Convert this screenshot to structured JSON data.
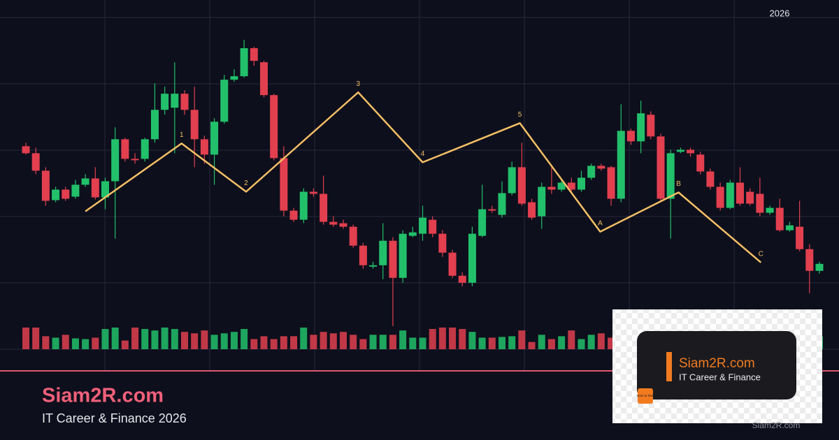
{
  "header": {
    "year": "2026"
  },
  "brand": {
    "name": "Siam2R.com",
    "tagline": "IT Career & Finance 2026",
    "footer": "Siam2R.com"
  },
  "logo": {
    "name": "Siam2R.com",
    "tagline": "IT Career & Finance",
    "badge": "Siam to Rich"
  },
  "chart_data": {
    "type": "candlestick",
    "up_color": "#22c06a",
    "down_color": "#e23f4f",
    "open": [
      290,
      280,
      255,
      213,
      228,
      218,
      235,
      244,
      217,
      240,
      300,
      272,
      272,
      300,
      342,
      345,
      365,
      342,
      300,
      278,
      325,
      385,
      390,
      430,
      410,
      363,
      273,
      198,
      185,
      225,
      222,
      182,
      180,
      175,
      148,
      118,
      120,
      155,
      102,
      162,
      165,
      185,
      165,
      138,
      105,
      95,
      162,
      200,
      192,
      223,
      260,
      210,
      190,
      232,
      228,
      238,
      228,
      245,
      262,
      260,
      215,
      312,
      297,
      335,
      304,
      215,
      282,
      285,
      278,
      254,
      232,
      202,
      238,
      225,
      222,
      195,
      202,
      170,
      175,
      143,
      112
    ],
    "high": [
      295,
      288,
      260,
      232,
      232,
      242,
      250,
      260,
      245,
      317,
      302,
      280,
      302,
      380,
      375,
      410,
      370,
      375,
      305,
      330,
      392,
      400,
      442,
      432,
      412,
      365,
      290,
      202,
      230,
      230,
      248,
      190,
      185,
      178,
      152,
      125,
      180,
      160,
      170,
      175,
      205,
      190,
      170,
      142,
      110,
      175,
      235,
      205,
      240,
      268,
      295,
      215,
      238,
      260,
      242,
      245,
      255,
      265,
      265,
      262,
      350,
      315,
      355,
      340,
      308,
      285,
      288,
      288,
      282,
      258,
      238,
      242,
      260,
      230,
      245,
      205,
      215,
      182,
      212,
      150,
      125
    ],
    "low": [
      278,
      250,
      205,
      210,
      212,
      215,
      232,
      214,
      200,
      158,
      268,
      265,
      268,
      295,
      335,
      280,
      335,
      260,
      265,
      235,
      322,
      382,
      388,
      405,
      360,
      270,
      190,
      182,
      180,
      218,
      178,
      175,
      172,
      145,
      115,
      115,
      100,
      33,
      95,
      160,
      155,
      160,
      132,
      102,
      90,
      90,
      160,
      195,
      188,
      220,
      205,
      185,
      172,
      222,
      225,
      222,
      225,
      242,
      255,
      205,
      210,
      292,
      280,
      300,
      210,
      158,
      280,
      275,
      250,
      228,
      198,
      200,
      205,
      205,
      190,
      192,
      168,
      168,
      140,
      80,
      108
    ],
    "close": [
      280,
      255,
      212,
      228,
      215,
      235,
      244,
      217,
      240,
      300,
      272,
      270,
      300,
      342,
      365,
      365,
      342,
      300,
      278,
      325,
      385,
      390,
      430,
      412,
      363,
      273,
      198,
      185,
      225,
      222,
      182,
      178,
      175,
      148,
      120,
      120,
      155,
      102,
      165,
      167,
      188,
      165,
      138,
      105,
      95,
      165,
      200,
      198,
      223,
      260,
      208,
      188,
      232,
      228,
      238,
      228,
      245,
      262,
      258,
      215,
      312,
      297,
      337,
      304,
      215,
      280,
      285,
      280,
      254,
      232,
      202,
      238,
      208,
      208,
      195,
      202,
      170,
      177,
      143,
      112,
      122
    ],
    "volume": [
      30,
      30,
      18,
      16,
      20,
      15,
      14,
      16,
      28,
      30,
      12,
      30,
      28,
      26,
      30,
      28,
      24,
      22,
      26,
      20,
      22,
      24,
      28,
      14,
      18,
      14,
      18,
      18,
      30,
      20,
      24,
      22,
      24,
      20,
      14,
      20,
      20,
      20,
      26,
      16,
      16,
      28,
      30,
      30,
      28,
      24,
      16,
      16,
      17,
      18,
      26,
      10,
      20,
      14,
      18,
      26,
      14,
      20,
      22,
      16,
      24,
      20,
      18,
      22,
      26,
      16,
      14,
      20,
      18,
      22,
      24,
      16,
      18,
      20,
      22,
      14,
      18,
      16,
      20,
      22,
      18
    ],
    "wave": {
      "x": [
        6,
        15.7,
        22.2,
        33.5,
        40,
        49.8,
        57.9,
        65.8,
        74.1
      ],
      "values": [
        197,
        294,
        225,
        367,
        267,
        323,
        168,
        224,
        124
      ],
      "labels": [
        null,
        "1",
        "2",
        "3",
        "4",
        "5",
        "A",
        "B",
        "C"
      ],
      "color": "#f4bf66"
    }
  }
}
